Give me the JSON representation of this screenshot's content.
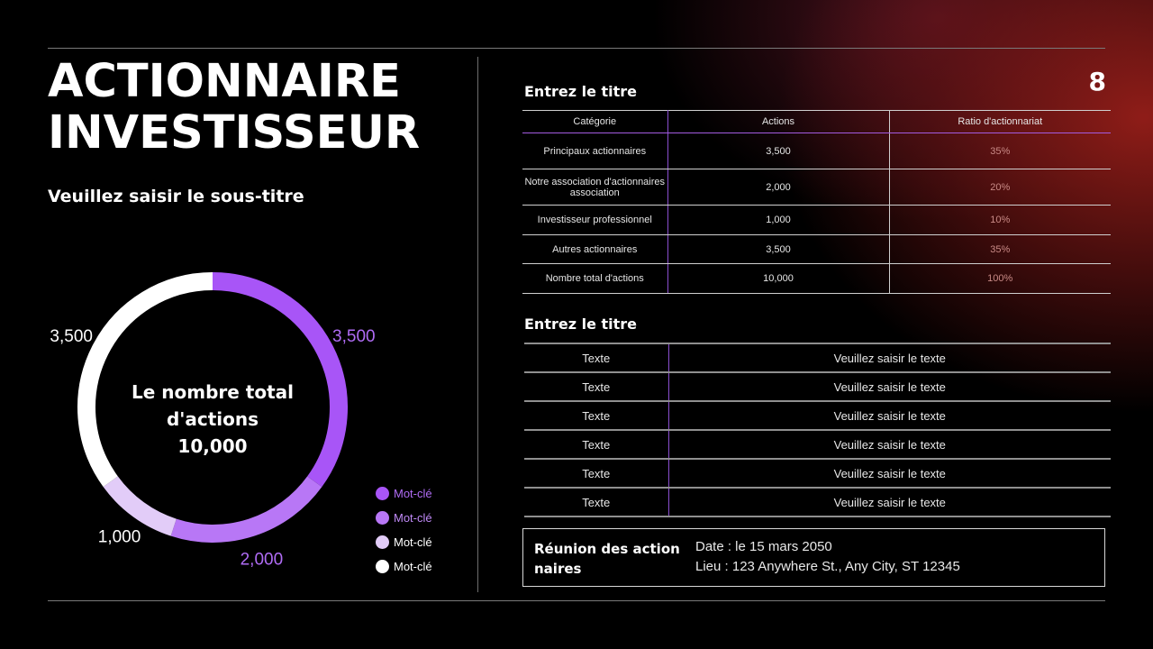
{
  "header": {
    "title_lines": [
      "ACTIONNAIRE",
      "INVESTISSEUR"
    ],
    "subtitle": "Veuillez saisir le sous-titre",
    "page_number": "8"
  },
  "chart_data": {
    "type": "pie",
    "donut": true,
    "center_lines": [
      "Le nombre total",
      "d'actions",
      "10,000"
    ],
    "slices": [
      {
        "label": "Mot-clé",
        "value": 3500,
        "value_label": "3,500",
        "color": "#a855f7",
        "label_color": "#b06cf5"
      },
      {
        "label": "Mot-clé",
        "value": 2000,
        "value_label": "2,000",
        "color": "#b877f6",
        "label_color": "#b06cf5"
      },
      {
        "label": "Mot-clé",
        "value": 1000,
        "value_label": "1,000",
        "color": "#e2ccf8",
        "label_color": "#ffffff"
      },
      {
        "label": "Mot-clé",
        "value": 3500,
        "value_label": "3,500",
        "color": "#ffffff",
        "label_color": "#ffffff"
      }
    ],
    "legend": [
      {
        "label": "Mot-clé",
        "color": "#a855f7",
        "text_color": "#b06cf5"
      },
      {
        "label": "Mot-clé",
        "color": "#b877f6",
        "text_color": "#c08af7"
      },
      {
        "label": "Mot-clé",
        "color": "#e2ccf8",
        "text_color": "#ffffff"
      },
      {
        "label": "Mot-clé",
        "color": "#ffffff",
        "text_color": "#ffffff"
      }
    ],
    "legend_position": "bottom-right"
  },
  "table1": {
    "title": "Entrez le titre",
    "headers": [
      "Catégorie",
      "Actions",
      "Ratio d'actionnariat"
    ],
    "rows": [
      [
        "Principaux actionnaires",
        "3,500",
        "35%"
      ],
      [
        "Notre association d'actionnaires association",
        "2,000",
        "20%"
      ],
      [
        "Investisseur professionnel",
        "1,000",
        "10%"
      ],
      [
        "Autres actionnaires",
        "3,500",
        "35%"
      ],
      [
        "Nombre total d'actions",
        "10,000",
        "100%"
      ]
    ]
  },
  "table2": {
    "title": "Entrez le titre",
    "rows": [
      [
        "Texte",
        "Veuillez saisir le texte"
      ],
      [
        "Texte",
        "Veuillez saisir le texte"
      ],
      [
        "Texte",
        "Veuillez saisir le texte"
      ],
      [
        "Texte",
        "Veuillez saisir le texte"
      ],
      [
        "Texte",
        "Veuillez saisir le texte"
      ],
      [
        "Texte",
        "Veuillez saisir le texte"
      ]
    ]
  },
  "meeting": {
    "title": "Réunion des action naires",
    "date": "Date : le 15 mars 2050",
    "place": "Lieu : 123 Anywhere St., Any City, ST 12345"
  }
}
